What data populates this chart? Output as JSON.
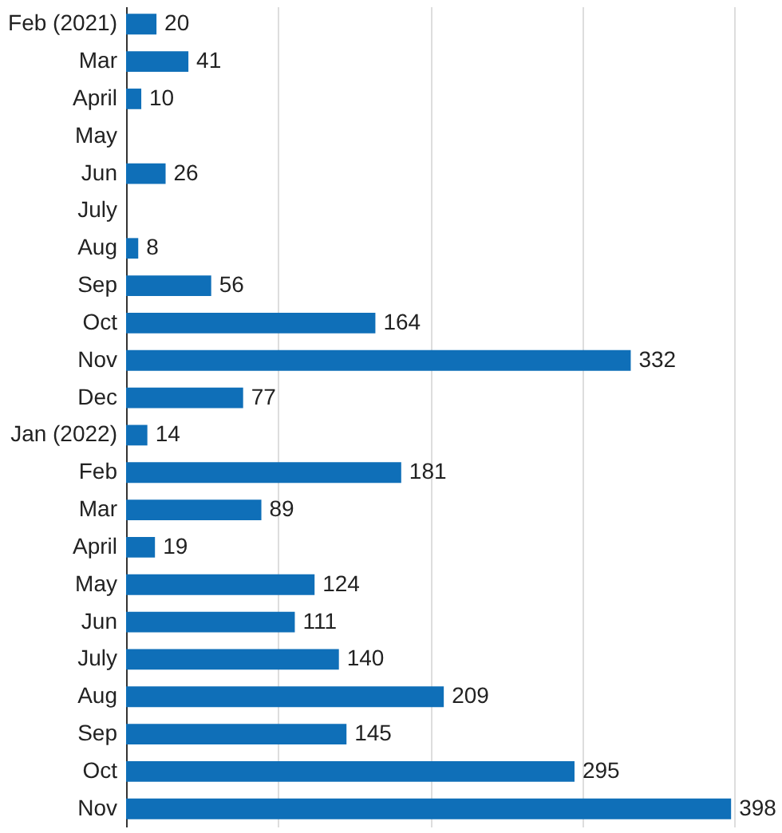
{
  "chart_data": {
    "type": "bar",
    "orientation": "horizontal",
    "categories": [
      "Feb (2021)",
      "Mar",
      "April",
      "May",
      "Jun",
      "July",
      "Aug",
      "Sep",
      "Oct",
      "Nov",
      "Dec",
      "Jan (2022)",
      "Feb",
      "Mar",
      "April",
      "May",
      "Jun",
      "July",
      "Aug",
      "Sep",
      "Oct",
      "Nov"
    ],
    "values": [
      20,
      41,
      10,
      null,
      26,
      null,
      8,
      56,
      164,
      332,
      77,
      14,
      181,
      89,
      19,
      124,
      111,
      140,
      209,
      145,
      295,
      398
    ],
    "color": "#0f6fb8",
    "data_labels": true,
    "xticks": [
      {
        "value": 0,
        "label": null
      },
      {
        "value": 100,
        "label": null
      },
      {
        "value": 200,
        "label": null
      },
      {
        "value": 300,
        "label": null
      },
      {
        "value": 400,
        "label": null
      }
    ],
    "grid": "x",
    "tick_labels": "y"
  }
}
